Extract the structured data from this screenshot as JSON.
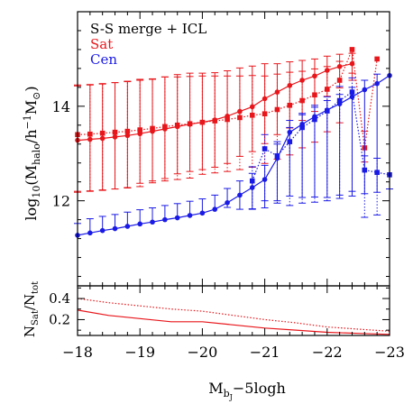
{
  "chart_data": [
    {
      "type": "line",
      "panel": "upper",
      "legend": {
        "placement": "top-left",
        "title": "S-S merge + ICL",
        "entries": [
          {
            "label": "Sat",
            "color": "#e8161b"
          },
          {
            "label": "Cen",
            "color": "#1a1ae6"
          }
        ]
      },
      "ylabel": "log10(Mhalo/h−1M⊙)",
      "ylabel_parts": {
        "pre": "log",
        "pre_sub": "10",
        "open": "(M",
        "sub": "halo",
        "mid": "/h",
        "sup": "−1",
        "post": "M",
        "post_sub": "⊙",
        "close": ")"
      },
      "xlim": [
        -18,
        -23
      ],
      "ylim": [
        10.2,
        16.0
      ],
      "yticks": [
        "12",
        "14"
      ],
      "grid": false,
      "series": [
        {
          "color": "#e8161b",
          "style": "solid",
          "markers": "circle",
          "errorbars": "solid",
          "x": [
            -18.0,
            -18.2,
            -18.4,
            -18.6,
            -18.8,
            -19.0,
            -19.2,
            -19.4,
            -19.6,
            -19.8,
            -20.0,
            -20.2,
            -20.4,
            -20.6,
            -20.8,
            -21.0,
            -21.2,
            -21.4,
            -21.6,
            -21.8,
            -22.0,
            -22.2,
            -22.4
          ],
          "y": [
            13.28,
            13.3,
            13.32,
            13.35,
            13.38,
            13.42,
            13.47,
            13.52,
            13.57,
            13.62,
            13.66,
            13.71,
            13.79,
            13.89,
            13.99,
            14.16,
            14.3,
            14.44,
            14.55,
            14.64,
            14.76,
            14.84,
            14.9
          ],
          "err_low": [
            1.1,
            1.1,
            1.1,
            1.1,
            1.1,
            1.05,
            1.05,
            1.05,
            1.0,
            1.0,
            1.0,
            1.0,
            1.0,
            0.95,
            0.95,
            0.95,
            0.9,
            0.9,
            0.85,
            0.75,
            0.55,
            0.45,
            0.35
          ],
          "err_high": [
            1.15,
            1.15,
            1.15,
            1.15,
            1.15,
            1.15,
            1.1,
            1.1,
            1.1,
            1.08,
            1.04,
            1.0,
            0.96,
            0.92,
            0.86,
            0.74,
            0.6,
            0.5,
            0.42,
            0.36,
            0.3,
            0.26,
            0.22
          ]
        },
        {
          "color": "#e8161b",
          "style": "dotted",
          "markers": "square",
          "errorbars": "dotted",
          "x": [
            -18.0,
            -18.2,
            -18.4,
            -18.6,
            -18.8,
            -19.0,
            -19.2,
            -19.4,
            -19.6,
            -19.8,
            -20.0,
            -20.2,
            -20.4,
            -20.6,
            -20.8,
            -21.0,
            -21.2,
            -21.4,
            -21.6,
            -21.8,
            -22.0,
            -22.2,
            -22.4,
            -22.6,
            -22.8
          ],
          "y": [
            13.4,
            13.41,
            13.43,
            13.45,
            13.47,
            13.5,
            13.53,
            13.57,
            13.6,
            13.63,
            13.66,
            13.69,
            13.72,
            13.76,
            13.81,
            13.84,
            13.93,
            14.02,
            14.12,
            14.24,
            14.36,
            14.55,
            15.2,
            13.12,
            15.0
          ],
          "err_low": [
            1.2,
            1.2,
            1.2,
            1.2,
            1.2,
            1.2,
            1.15,
            1.15,
            1.15,
            1.15,
            1.1,
            1.1,
            1.1,
            1.1,
            1.1,
            1.05,
            1.05,
            1.05,
            1.0,
            1.0,
            0.9,
            0.9,
            0.5,
            0.3,
            0.0
          ],
          "err_high": [
            1.05,
            1.05,
            1.05,
            1.05,
            1.05,
            1.05,
            1.05,
            1.05,
            1.02,
            1.0,
            0.98,
            0.95,
            0.92,
            0.88,
            0.84,
            0.8,
            0.75,
            0.7,
            0.62,
            0.55,
            0.48,
            0.4,
            0.0,
            0.35,
            0.0
          ]
        },
        {
          "color": "#1a1ae6",
          "style": "solid",
          "markers": "circle",
          "errorbars": "solid",
          "x": [
            -18.0,
            -18.2,
            -18.4,
            -18.6,
            -18.8,
            -19.0,
            -19.2,
            -19.4,
            -19.6,
            -19.8,
            -20.0,
            -20.2,
            -20.4,
            -20.6,
            -20.8,
            -21.0,
            -21.2,
            -21.4,
            -21.6,
            -21.8,
            -22.0,
            -22.2,
            -22.4,
            -22.6,
            -22.8,
            -23.0
          ],
          "y": [
            11.27,
            11.32,
            11.37,
            11.41,
            11.46,
            11.51,
            11.55,
            11.6,
            11.64,
            11.69,
            11.74,
            11.82,
            11.96,
            12.12,
            12.28,
            12.45,
            12.9,
            13.45,
            13.62,
            13.78,
            13.92,
            14.05,
            14.2,
            14.35,
            14.48,
            14.65
          ],
          "err_low": [
            0.0,
            0.0,
            0.0,
            0.0,
            0.0,
            0.0,
            0.0,
            0.0,
            0.0,
            0.0,
            0.0,
            0.0,
            0.1,
            0.3,
            0.45,
            0.6,
            0.9,
            1.35,
            1.55,
            1.7,
            1.85,
            2.0,
            2.1,
            2.2,
            2.3,
            2.4
          ],
          "err_high": [
            0.25,
            0.3,
            0.3,
            0.3,
            0.3,
            0.3,
            0.3,
            0.3,
            0.3,
            0.3,
            0.3,
            0.3,
            0.3,
            0.3,
            0.3,
            0.3,
            0.3,
            0.25,
            0.2,
            0.2,
            0.2,
            0.2,
            0.2,
            0.2,
            0.2,
            0.0
          ]
        },
        {
          "color": "#1a1ae6",
          "style": "dotted",
          "markers": "square",
          "errorbars": "dotted",
          "x": [
            -20.8,
            -21.0,
            -21.2,
            -21.4,
            -21.6,
            -21.8,
            -22.0,
            -22.2,
            -22.4,
            -22.6,
            -22.8,
            -23.0
          ],
          "y": [
            12.42,
            13.1,
            12.95,
            13.25,
            13.55,
            13.72,
            13.9,
            14.12,
            14.3,
            12.65,
            12.6,
            12.55
          ],
          "err_low": [
            0.6,
            1.1,
            1.0,
            1.35,
            1.6,
            1.75,
            1.9,
            2.0,
            2.1,
            1.0,
            0.9,
            0.0
          ],
          "err_high": [
            0.3,
            0.3,
            0.3,
            0.3,
            0.3,
            0.3,
            0.3,
            0.3,
            0.3,
            0.3,
            0.3,
            0.0
          ]
        }
      ]
    },
    {
      "type": "line",
      "panel": "lower",
      "ylabel": "NSat/Ntot",
      "ylabel_parts": {
        "a": "N",
        "a_sub": "Sat",
        "b": "/N",
        "b_sub": "tot"
      },
      "xlabel": "Mbj−5logh",
      "xlabel_parts": {
        "a": "M",
        "a_sub": "b",
        "a_subsub": "J",
        "b": "−5logh"
      },
      "xlim": [
        -18,
        -23
      ],
      "ylim": [
        0.05,
        0.52
      ],
      "xticks": [
        "−18",
        "−19",
        "−20",
        "−21",
        "−22",
        "−23"
      ],
      "yticks": [
        "0.2",
        "0.4"
      ],
      "grid": false,
      "series": [
        {
          "color": "#e8161b",
          "style": "solid",
          "x": [
            -18.0,
            -18.5,
            -19.0,
            -19.5,
            -20.0,
            -20.5,
            -21.0,
            -21.5,
            -22.0,
            -22.5,
            -23.0
          ],
          "y": [
            0.29,
            0.24,
            0.21,
            0.18,
            0.18,
            0.15,
            0.12,
            0.1,
            0.08,
            0.07,
            0.06
          ]
        },
        {
          "color": "#e8161b",
          "style": "dotted",
          "x": [
            -18.0,
            -18.5,
            -19.0,
            -19.5,
            -20.0,
            -20.5,
            -21.0,
            -21.5,
            -22.0,
            -22.5,
            -23.0
          ],
          "y": [
            0.4,
            0.36,
            0.33,
            0.3,
            0.28,
            0.24,
            0.2,
            0.17,
            0.13,
            0.11,
            0.09
          ]
        }
      ]
    }
  ]
}
